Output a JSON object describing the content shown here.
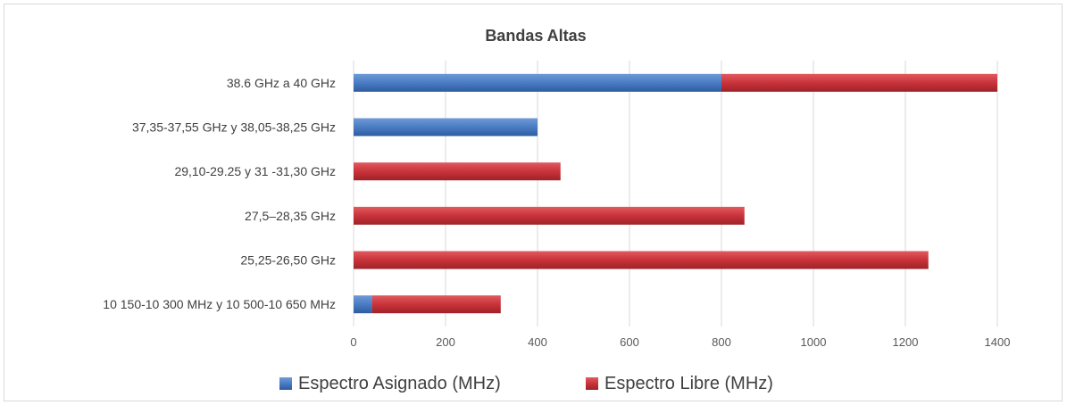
{
  "chart_data": {
    "type": "bar",
    "orientation": "horizontal",
    "stacked": true,
    "title": "Bandas Altas",
    "categories": [
      "38.6 GHz a 40 GHz",
      "37,35-37,55 GHz y 38,05-38,25 GHz",
      "29,10-29.25 y 31 -31,30 GHz",
      "27,5–28,35 GHz",
      "25,25-26,50 GHz",
      "10 150-10 300 MHz y 10 500-10 650 MHz"
    ],
    "series": [
      {
        "name": "Espectro Asignado (MHz)",
        "values": [
          800,
          400,
          0,
          0,
          0,
          40
        ],
        "color": "#4a7cc4"
      },
      {
        "name": "Espectro Libre (MHz)",
        "values": [
          600,
          0,
          450,
          850,
          1250,
          280
        ],
        "color": "#c9333a"
      }
    ],
    "xlim": [
      0,
      1400
    ],
    "xticks": [
      "0",
      "200",
      "400",
      "600",
      "800",
      "1000",
      "1200",
      "1400"
    ],
    "grid": true,
    "legend": "bottom"
  }
}
